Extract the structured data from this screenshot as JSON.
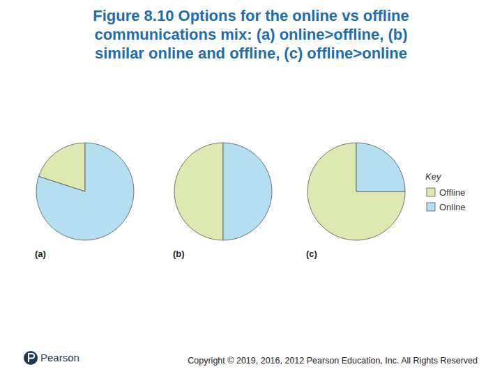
{
  "title": [
    "Figure 8.10 Options for the online vs offline",
    "communications mix: (a) online>offline, (b)",
    "similar online and offline, (c) offline>online"
  ],
  "legend_title": "Key",
  "logo": "Pearson",
  "copyright": "Copyright © 2019, 2016, 2012 Pearson Education, Inc. All Rights Reserved",
  "chart_data": [
    {
      "type": "pie",
      "title": "(a)",
      "categories": [
        "Offline",
        "Online"
      ],
      "values": [
        20,
        80
      ],
      "colors": [
        "#dde9b0",
        "#b3dff0"
      ]
    },
    {
      "type": "pie",
      "title": "(b)",
      "categories": [
        "Offline",
        "Online"
      ],
      "values": [
        50,
        50
      ],
      "colors": [
        "#dde9b0",
        "#b3dff0"
      ]
    },
    {
      "type": "pie",
      "title": "(c)",
      "categories": [
        "Offline",
        "Online"
      ],
      "values": [
        75,
        25
      ],
      "colors": [
        "#dde9b0",
        "#b3dff0"
      ],
      "legend": "right"
    }
  ]
}
